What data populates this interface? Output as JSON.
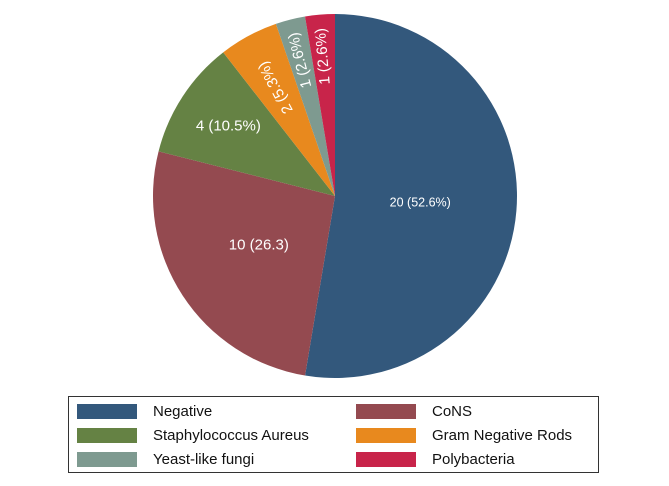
{
  "chart_data": {
    "type": "pie",
    "title": "",
    "categories": [
      "Negative",
      "CoNS",
      "Staphylococcus Aureus",
      "Gram Negative Rods",
      "Yeast-like fungi",
      "Polybacteria"
    ],
    "values": [
      20,
      10,
      4,
      2,
      1,
      1
    ],
    "labels": [
      "20 (52.6%)",
      "10 (26.3)",
      "4 (10.5%)",
      "2 (5.3%)",
      "1 (2.6%)",
      "1 (2.6%)"
    ],
    "colors": [
      "#33587c",
      "#944a50",
      "#658244",
      "#e8891e",
      "#7e9a90",
      "#c8244a"
    ],
    "start_angle": "12 o'clock",
    "direction": "clockwise",
    "legend_position": "bottom",
    "legend_columns": 2
  },
  "legend": [
    {
      "label": "Negative",
      "color": "#33587c"
    },
    {
      "label": "CoNS",
      "color": "#944a50"
    },
    {
      "label": "Staphylococcus Aureus",
      "color": "#658244"
    },
    {
      "label": "Gram Negative Rods",
      "color": "#e8891e"
    },
    {
      "label": "Yeast-like fungi",
      "color": "#7e9a90"
    },
    {
      "label": "Polybacteria",
      "color": "#c8244a"
    }
  ]
}
